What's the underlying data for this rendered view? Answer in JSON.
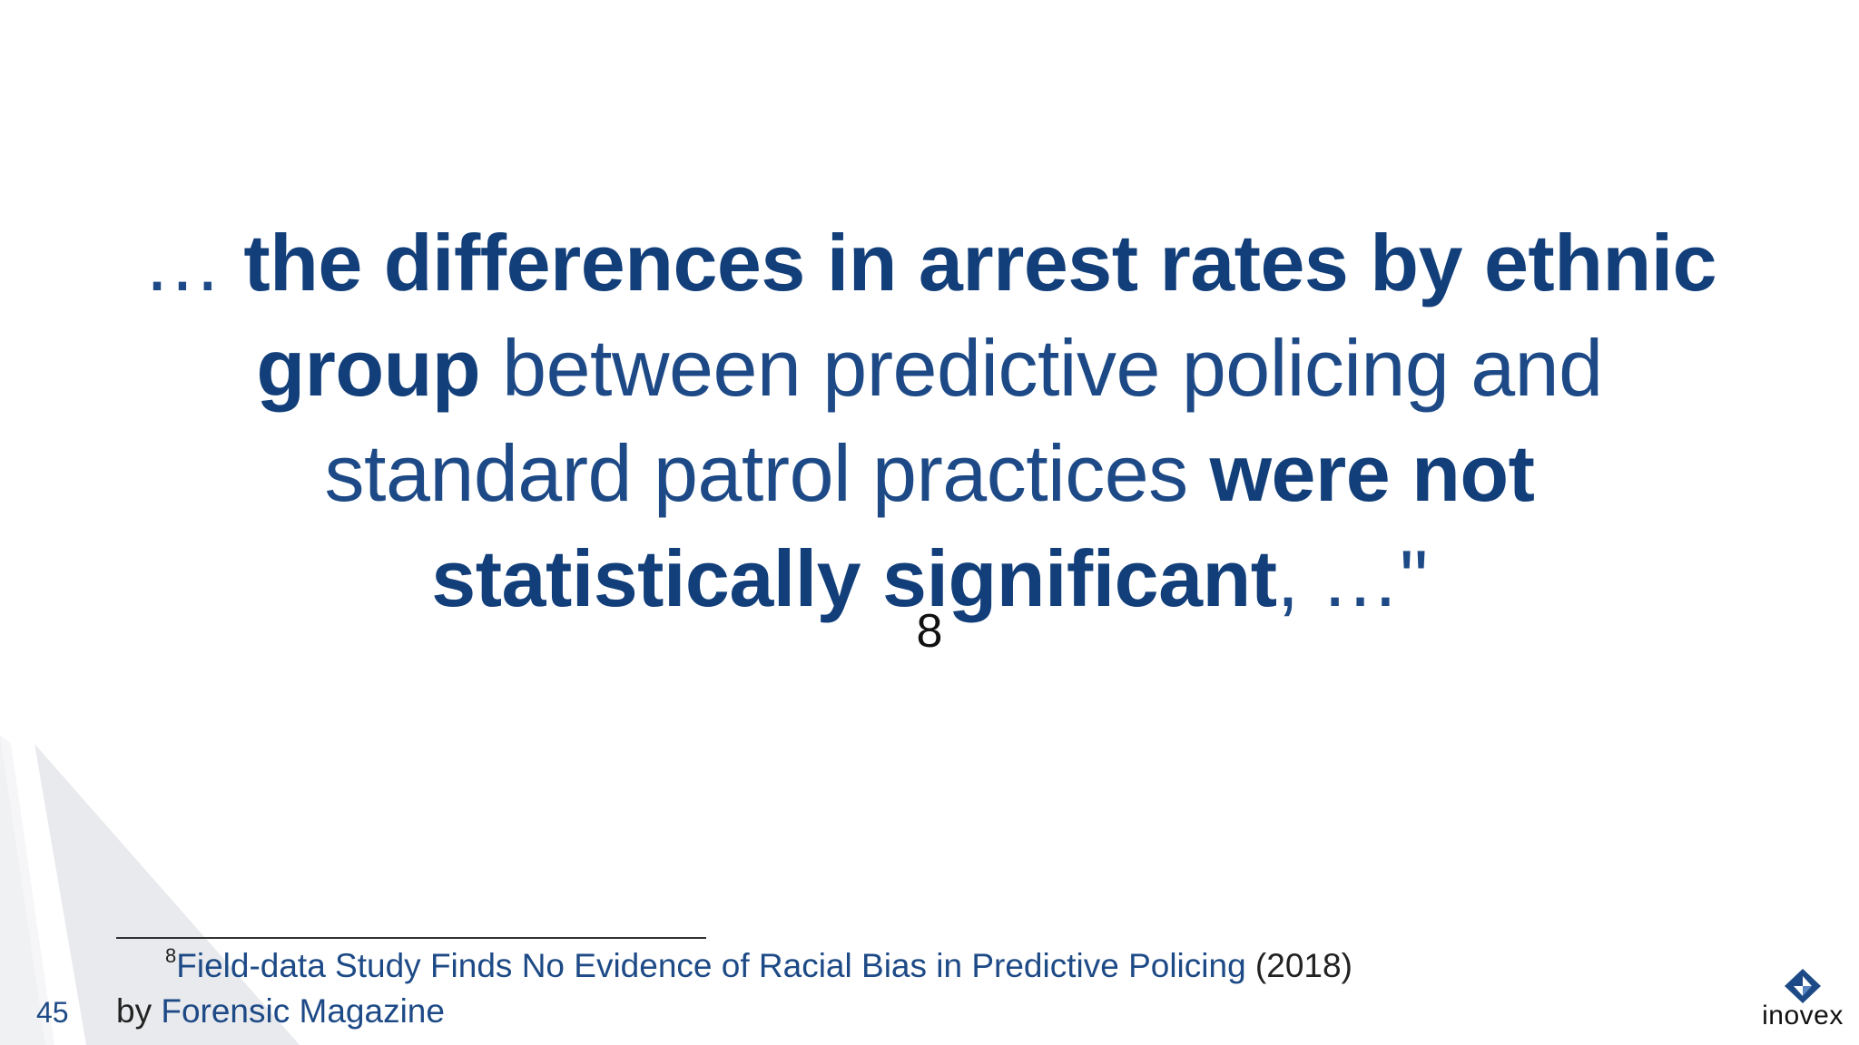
{
  "slide": {
    "quote": {
      "lead": "… ",
      "bold1": "the differences in arrest rates by ethnic group",
      "light1": " between predictive policing and standard patrol practices ",
      "bold2": "were not statistically significant",
      "tail": ", …\""
    },
    "footnote_marker": "8",
    "footnote": {
      "number": "8",
      "title": "Field-data Study Finds No Evidence of Racial Bias in Predictive Policing",
      "year": " (2018)",
      "by": "by ",
      "publisher": "Forensic Magazine"
    },
    "page_number": "45",
    "logo": {
      "text": "inovex",
      "icon": "inovex-diamond-icon"
    }
  },
  "colors": {
    "text_blue": "#1d4a86",
    "bold_blue": "#123f7a",
    "decoration_gray": "#e6e7ea"
  }
}
